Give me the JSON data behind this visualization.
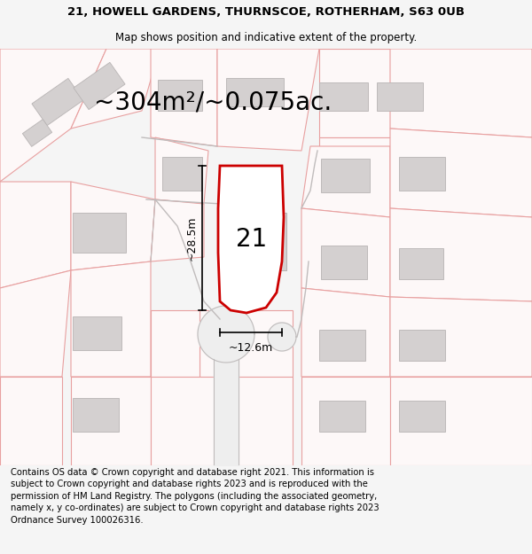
{
  "title_line1": "21, HOWELL GARDENS, THURNSCOE, ROTHERHAM, S63 0UB",
  "title_line2": "Map shows position and indicative extent of the property.",
  "area_text": "~304m²/~0.075ac.",
  "plot_number": "21",
  "dim_height": "~28.5m",
  "dim_width": "~12.6m",
  "footer_text": "Contains OS data © Crown copyright and database right 2021. This information is subject to Crown copyright and database rights 2023 and is reproduced with the permission of HM Land Registry. The polygons (including the associated geometry, namely x, y co-ordinates) are subject to Crown copyright and database rights 2023 Ordnance Survey 100026316.",
  "bg_color": "#f5f5f5",
  "map_bg": "#ffffff",
  "property_outline_color": "#cc0000",
  "plot_edge": "#c0b8b8",
  "building_fill": "#d4d0d0",
  "building_edge": "#b8b4b4",
  "title_fontsize": 9.5,
  "subtitle_fontsize": 8.5,
  "area_fontsize": 20,
  "plot_num_fontsize": 20,
  "dim_fontsize": 9,
  "footer_fontsize": 7.2,
  "title_bold": true
}
